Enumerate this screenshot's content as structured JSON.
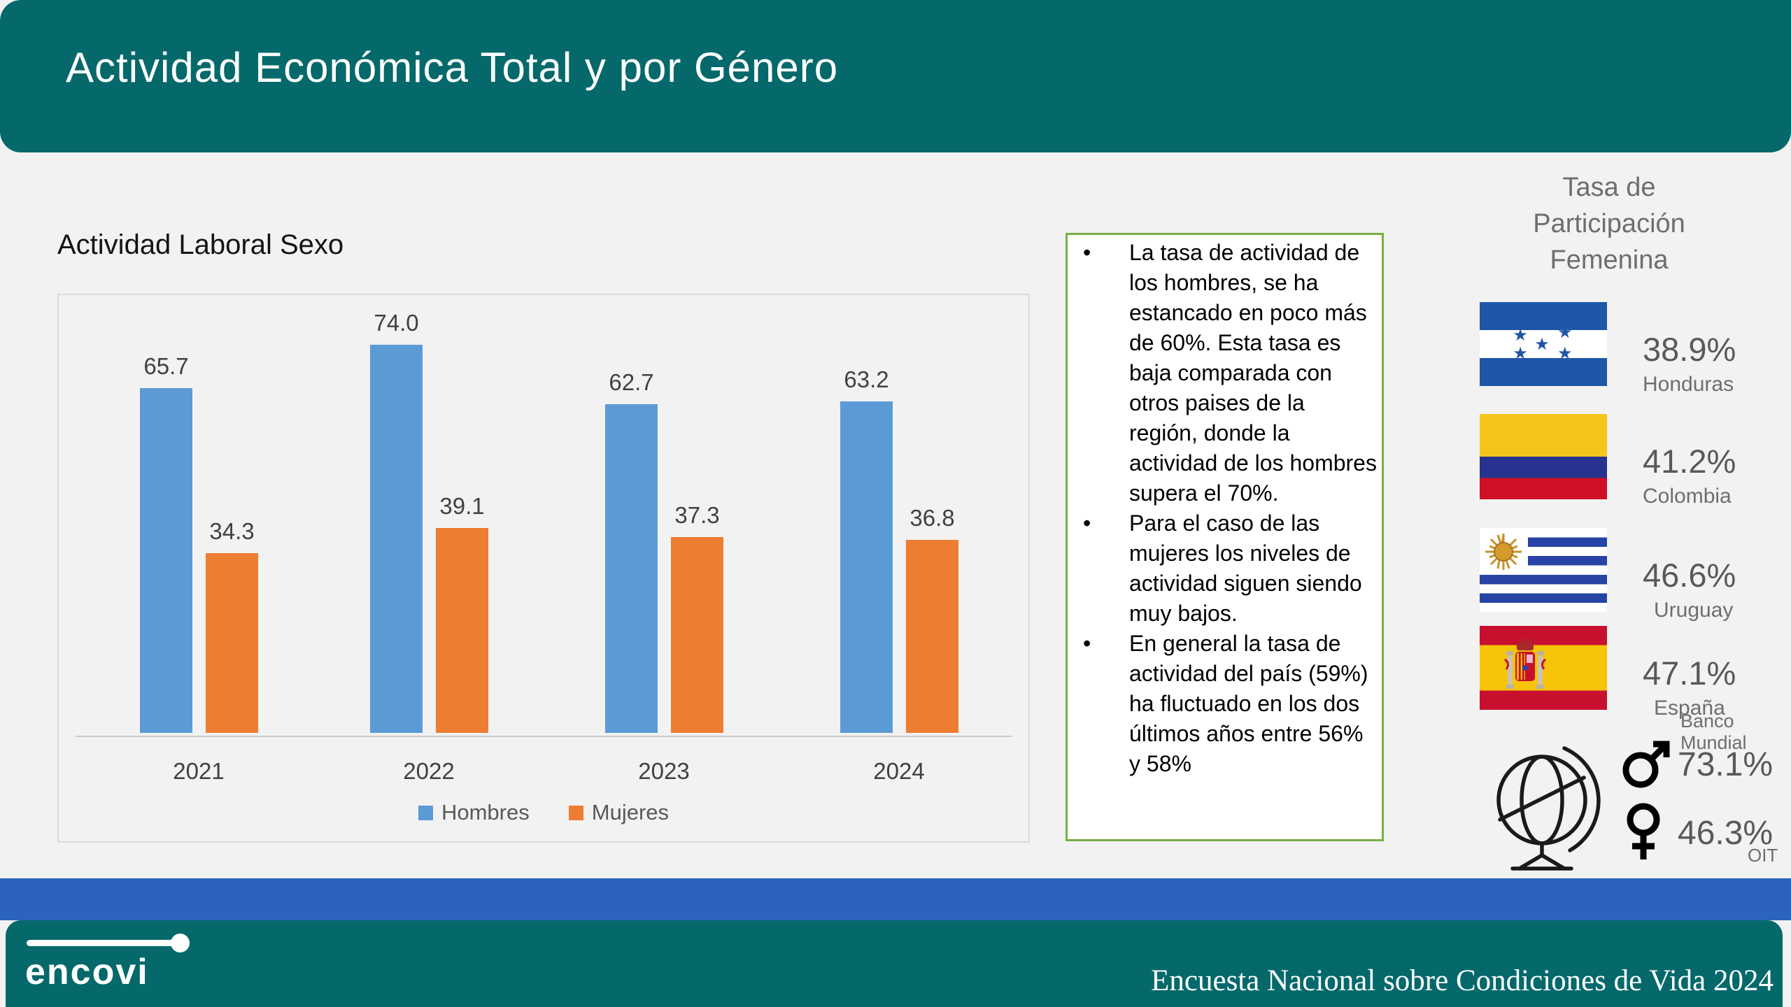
{
  "header": {
    "title": "Actividad Económica Total y por Género",
    "bg_color": "#05696B",
    "text_color": "#FFFFFF"
  },
  "chart_section": {
    "title": "Actividad Laboral Sexo"
  },
  "chart_data": {
    "type": "bar",
    "title": "Actividad Laboral Sexo",
    "categories": [
      "2021",
      "2022",
      "2023",
      "2024"
    ],
    "series": [
      {
        "name": "Hombres",
        "color": "#5B9BD5",
        "values": [
          65.7,
          74.0,
          62.7,
          63.2
        ],
        "labels": [
          "65.7",
          "74.0",
          "62.7",
          "63.2"
        ]
      },
      {
        "name": "Mujeres",
        "color": "#ED7D31",
        "values": [
          34.3,
          39.1,
          37.3,
          36.8
        ],
        "labels": [
          "34.3",
          "39.1",
          "37.3",
          "36.8"
        ]
      }
    ],
    "ylim": [
      0,
      84
    ],
    "xlabel": "",
    "ylabel": "",
    "gridlines": false,
    "data_labels": true,
    "legend_position": "bottom"
  },
  "notes_box": {
    "border_color": "#76B041",
    "bullets": [
      "La tasa de actividad de los hombres, se ha estancado en poco más de 60%. Esta tasa es baja comparada con otros paises de la región, donde la actividad de los hombres supera el 70%.",
      "Para el caso de las mujeres los niveles de actividad siguen siendo muy bajos.",
      "En general la tasa de actividad del país (59%) ha fluctuado en los dos últimos años entre 56% y 58%"
    ]
  },
  "sidebar": {
    "title": "Tasa de Participación Femenina",
    "items": [
      {
        "country": "Honduras",
        "value": "38.9%",
        "flag": "honduras-flag",
        "flag_colors": [
          "#2056A7",
          "#FFFFFF"
        ]
      },
      {
        "country": "Colombia",
        "value": "41.2%",
        "flag": "colombia-flag",
        "flag_colors": [
          "#F6C51C",
          "#27338F",
          "#CE1126"
        ]
      },
      {
        "country": "Uruguay",
        "value": "46.6%",
        "flag": "uruguay-flag",
        "flag_colors": [
          "#FFFFFF",
          "#2743A5",
          "#D49A2D"
        ]
      },
      {
        "country": "España",
        "value": "47.1%",
        "flag": "espana-flag",
        "flag_colors": [
          "#C8102E",
          "#F6C408"
        ]
      }
    ],
    "source_note_flags": "Banco Mundial",
    "world": {
      "male_value": "73.1%",
      "female_value": "46.3%",
      "source_note": "OIT"
    }
  },
  "footer": {
    "logo_text": "encovi",
    "caption": "Encuesta Nacional sobre Condiciones de Vida 2024",
    "bar_color": "#2B63BE",
    "bg_color": "#05696B"
  }
}
